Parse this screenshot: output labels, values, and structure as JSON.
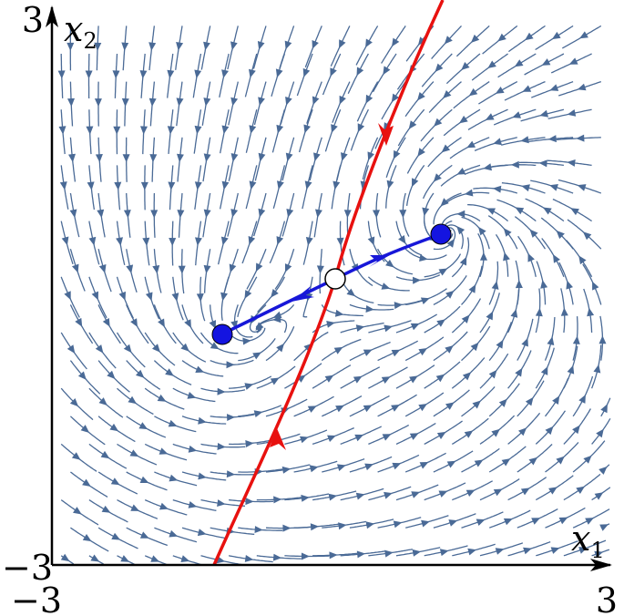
{
  "figure": {
    "x_axis": {
      "variable": "x",
      "subscript": "1",
      "min_label": "−3",
      "max_label": "3"
    },
    "y_axis": {
      "variable": "x",
      "subscript": "2",
      "min_label": "−3",
      "max_label": "3"
    }
  },
  "domain": {
    "xlim": [
      -3,
      3
    ],
    "ylim": [
      -3,
      3
    ]
  },
  "points": {
    "stable_1": {
      "x": -1.15,
      "y": -0.5,
      "kind": "filled"
    },
    "stable_2": {
      "x": 1.25,
      "y": 0.7,
      "kind": "filled"
    },
    "saddle": {
      "x": 0.0,
      "y": 0.1,
      "kind": "open"
    }
  },
  "colors": {
    "streamline": "#4a6a96",
    "separatrix": "#e8110f",
    "manifold": "#1717d8",
    "point_fill": "#1414e0",
    "axis": "#000000"
  }
}
